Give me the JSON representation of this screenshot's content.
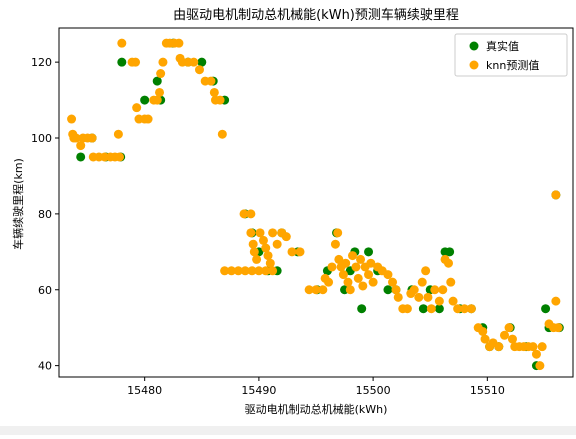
{
  "chart_data": {
    "type": "scatter",
    "title": "由驱动电机制动总机械能(kWh)预测车辆续驶里程",
    "xlabel": "驱动电机制动总机械能(kWh)",
    "ylabel": "车辆续驶里程(km)",
    "xlim": [
      15472.5,
      15517.5
    ],
    "ylim": [
      37,
      129
    ],
    "xticks": [
      15480,
      15490,
      15500,
      15510
    ],
    "yticks": [
      40,
      60,
      80,
      100,
      120
    ],
    "legend_position": "top-right",
    "series": [
      {
        "name": "真实值",
        "color": "#008000",
        "points": [
          [
            15474.4,
            95
          ],
          [
            15475.4,
            100
          ],
          [
            15476.6,
            95
          ],
          [
            15477.9,
            95
          ],
          [
            15478.0,
            120
          ],
          [
            15480.0,
            110
          ],
          [
            15481.1,
            115
          ],
          [
            15481.4,
            110
          ],
          [
            15482.5,
            125
          ],
          [
            15483.8,
            120
          ],
          [
            15485.0,
            120
          ],
          [
            15486.0,
            115
          ],
          [
            15487.0,
            110
          ],
          [
            15488.8,
            80
          ],
          [
            15489.4,
            75
          ],
          [
            15490.0,
            70
          ],
          [
            15490.8,
            65
          ],
          [
            15491.6,
            65
          ],
          [
            15492.0,
            75
          ],
          [
            15493.4,
            70
          ],
          [
            15495.1,
            60
          ],
          [
            15496.0,
            65
          ],
          [
            15496.8,
            75
          ],
          [
            15497.5,
            60
          ],
          [
            15498.0,
            65
          ],
          [
            15498.4,
            70
          ],
          [
            15499.0,
            55
          ],
          [
            15499.6,
            70
          ],
          [
            15500.4,
            65
          ],
          [
            15501.3,
            60
          ],
          [
            15502.0,
            60
          ],
          [
            15503.4,
            60
          ],
          [
            15504.4,
            55
          ],
          [
            15505.0,
            60
          ],
          [
            15505.8,
            55
          ],
          [
            15506.3,
            70
          ],
          [
            15506.7,
            70
          ],
          [
            15507.6,
            55
          ],
          [
            15508.6,
            55
          ],
          [
            15509.6,
            50
          ],
          [
            15510.2,
            45
          ],
          [
            15511.0,
            45
          ],
          [
            15512.0,
            50
          ],
          [
            15513.4,
            45
          ],
          [
            15514.3,
            40
          ],
          [
            15515.1,
            55
          ],
          [
            15515.4,
            50
          ],
          [
            15516.0,
            85
          ],
          [
            15516.3,
            50
          ]
        ]
      },
      {
        "name": "knn预测值",
        "color": "#ffa500",
        "points": [
          [
            15473.6,
            105
          ],
          [
            15473.7,
            101
          ],
          [
            15473.8,
            100
          ],
          [
            15474.0,
            100
          ],
          [
            15474.4,
            98
          ],
          [
            15474.6,
            100
          ],
          [
            15475.0,
            100
          ],
          [
            15475.4,
            100
          ],
          [
            15475.5,
            95
          ],
          [
            15476.0,
            95
          ],
          [
            15476.5,
            95
          ],
          [
            15477.0,
            95
          ],
          [
            15477.4,
            95
          ],
          [
            15477.8,
            95
          ],
          [
            15477.7,
            101
          ],
          [
            15478.0,
            125
          ],
          [
            15478.9,
            120
          ],
          [
            15479.2,
            120
          ],
          [
            15479.3,
            108
          ],
          [
            15479.5,
            105
          ],
          [
            15480.0,
            105
          ],
          [
            15480.3,
            105
          ],
          [
            15480.8,
            110
          ],
          [
            15481.1,
            110
          ],
          [
            15481.3,
            112
          ],
          [
            15481.4,
            117
          ],
          [
            15481.6,
            120
          ],
          [
            15481.9,
            125
          ],
          [
            15482.2,
            125
          ],
          [
            15482.6,
            125
          ],
          [
            15483.0,
            125
          ],
          [
            15483.1,
            121
          ],
          [
            15483.3,
            120
          ],
          [
            15483.8,
            120
          ],
          [
            15484.3,
            120
          ],
          [
            15484.8,
            118
          ],
          [
            15485.3,
            115
          ],
          [
            15485.8,
            115
          ],
          [
            15486.1,
            112
          ],
          [
            15486.2,
            110
          ],
          [
            15486.6,
            110
          ],
          [
            15486.8,
            101
          ],
          [
            15487.0,
            65
          ],
          [
            15487.6,
            65
          ],
          [
            15488.2,
            65
          ],
          [
            15488.8,
            65
          ],
          [
            15489.4,
            65
          ],
          [
            15490.0,
            65
          ],
          [
            15490.6,
            65
          ],
          [
            15491.2,
            65
          ],
          [
            15488.7,
            80
          ],
          [
            15489.3,
            80
          ],
          [
            15489.3,
            75
          ],
          [
            15489.5,
            72
          ],
          [
            15489.6,
            70
          ],
          [
            15489.8,
            68
          ],
          [
            15490.1,
            75
          ],
          [
            15490.4,
            73
          ],
          [
            15490.6,
            71
          ],
          [
            15490.8,
            69
          ],
          [
            15491.0,
            67
          ],
          [
            15491.2,
            75
          ],
          [
            15491.6,
            72
          ],
          [
            15492.0,
            75
          ],
          [
            15492.4,
            74
          ],
          [
            15492.9,
            70
          ],
          [
            15493.6,
            70
          ],
          [
            15494.4,
            60
          ],
          [
            15495.0,
            60
          ],
          [
            15495.6,
            60
          ],
          [
            15495.8,
            63
          ],
          [
            15496.1,
            62
          ],
          [
            15496.4,
            66
          ],
          [
            15496.7,
            72
          ],
          [
            15496.9,
            75
          ],
          [
            15497.0,
            68
          ],
          [
            15497.2,
            66
          ],
          [
            15497.4,
            64
          ],
          [
            15497.6,
            67
          ],
          [
            15497.8,
            62
          ],
          [
            15498.0,
            60
          ],
          [
            15498.2,
            69
          ],
          [
            15498.5,
            66
          ],
          [
            15498.7,
            63
          ],
          [
            15498.9,
            68
          ],
          [
            15499.1,
            61
          ],
          [
            15499.3,
            66
          ],
          [
            15499.6,
            64
          ],
          [
            15499.8,
            67
          ],
          [
            15500.0,
            62
          ],
          [
            15500.4,
            66
          ],
          [
            15500.8,
            65
          ],
          [
            15501.3,
            64
          ],
          [
            15501.7,
            62
          ],
          [
            15502.0,
            60
          ],
          [
            15502.2,
            58
          ],
          [
            15502.6,
            55
          ],
          [
            15503.0,
            55
          ],
          [
            15503.3,
            59
          ],
          [
            15503.6,
            60
          ],
          [
            15504.0,
            58
          ],
          [
            15504.3,
            62
          ],
          [
            15504.6,
            65
          ],
          [
            15504.8,
            58
          ],
          [
            15505.1,
            55
          ],
          [
            15505.4,
            60
          ],
          [
            15505.8,
            57
          ],
          [
            15506.1,
            60
          ],
          [
            15506.3,
            68
          ],
          [
            15506.6,
            67
          ],
          [
            15506.8,
            62
          ],
          [
            15507.0,
            57
          ],
          [
            15507.4,
            55
          ],
          [
            15508.0,
            55
          ],
          [
            15508.6,
            55
          ],
          [
            15509.2,
            50
          ],
          [
            15509.6,
            49
          ],
          [
            15509.8,
            47
          ],
          [
            15510.2,
            45
          ],
          [
            15510.5,
            46
          ],
          [
            15511.0,
            45
          ],
          [
            15511.5,
            48
          ],
          [
            15511.9,
            50
          ],
          [
            15512.2,
            47
          ],
          [
            15512.4,
            45
          ],
          [
            15512.8,
            45
          ],
          [
            15513.2,
            45
          ],
          [
            15513.6,
            45
          ],
          [
            15514.0,
            45
          ],
          [
            15514.3,
            43
          ],
          [
            15514.6,
            40
          ],
          [
            15514.8,
            45
          ],
          [
            15515.4,
            51
          ],
          [
            15515.8,
            50
          ],
          [
            15516.0,
            57
          ],
          [
            15516.0,
            85
          ],
          [
            15516.2,
            50
          ]
        ]
      }
    ]
  }
}
